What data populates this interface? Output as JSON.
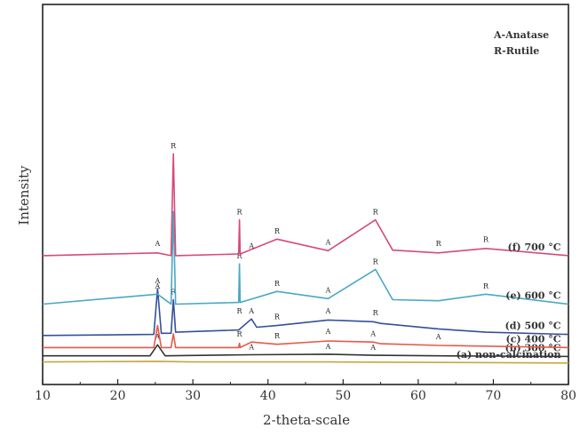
{
  "chart_data": {
    "type": "line",
    "xlabel": "2-theta-scale",
    "ylabel": "Intensity",
    "xlim": [
      10,
      80
    ],
    "xticks": [
      10,
      20,
      30,
      40,
      50,
      60,
      70,
      80
    ],
    "legend": [
      "A-Anatase",
      "R-Rutile"
    ],
    "series": [
      {
        "name": "(a) non-calcination",
        "color": "#c8a63a",
        "offset": 0,
        "points": [
          [
            10,
            12
          ],
          [
            25.3,
            13
          ],
          [
            30,
            12
          ],
          [
            48,
            12
          ],
          [
            80,
            10
          ]
        ],
        "markers": []
      },
      {
        "name": "(b) 300 °C",
        "color": "#333333",
        "offset": 8,
        "points": [
          [
            10,
            15
          ],
          [
            24.3,
            15
          ],
          [
            25.3,
            35
          ],
          [
            26.3,
            15
          ],
          [
            37.8,
            17
          ],
          [
            48,
            18
          ],
          [
            54,
            16
          ],
          [
            62.7,
            15
          ],
          [
            80,
            14
          ]
        ],
        "markers": [
          {
            "label": "A",
            "x": 25.3,
            "y": 40
          },
          {
            "label": "A",
            "x": 37.8,
            "y": 22
          },
          {
            "label": "A",
            "x": 48.0,
            "y": 23
          },
          {
            "label": "A",
            "x": 54.0,
            "y": 21
          }
        ]
      },
      {
        "name": "(c) 400 °C",
        "color": "#e45a4a",
        "offset": 18,
        "points": [
          [
            10,
            20
          ],
          [
            24.8,
            20
          ],
          [
            25.3,
            60
          ],
          [
            25.8,
            20
          ],
          [
            27.1,
            20
          ],
          [
            27.4,
            45
          ],
          [
            27.7,
            20
          ],
          [
            36.1,
            20
          ],
          [
            36.2,
            28
          ],
          [
            36.3,
            20
          ],
          [
            37.8,
            30
          ],
          [
            41.2,
            26
          ],
          [
            48,
            32
          ],
          [
            54,
            30
          ],
          [
            55,
            27
          ],
          [
            62.7,
            24
          ],
          [
            80,
            20
          ]
        ],
        "markers": [
          {
            "label": "R",
            "x": 36.2,
            "y": 35
          },
          {
            "label": "R",
            "x": 41.2,
            "y": 32
          },
          {
            "label": "A",
            "x": 48.0,
            "y": 40
          },
          {
            "label": "A",
            "x": 54.0,
            "y": 36
          },
          {
            "label": "A",
            "x": 62.7,
            "y": 30
          }
        ]
      },
      {
        "name": "(d) 500 °C",
        "color": "#34509a",
        "offset": 40,
        "points": [
          [
            10,
            20
          ],
          [
            24.8,
            22
          ],
          [
            25.3,
            105
          ],
          [
            25.8,
            24
          ],
          [
            27.1,
            24
          ],
          [
            27.4,
            85
          ],
          [
            27.7,
            26
          ],
          [
            36.1,
            30
          ],
          [
            37.8,
            50
          ],
          [
            38.5,
            35
          ],
          [
            41.2,
            38
          ],
          [
            48,
            48
          ],
          [
            54,
            45
          ],
          [
            55,
            42
          ],
          [
            62.7,
            32
          ],
          [
            69,
            26
          ],
          [
            80,
            22
          ]
        ],
        "markers": [
          {
            "label": "A",
            "x": 25.3,
            "y": 110
          },
          {
            "label": "R",
            "x": 27.4,
            "y": 90
          },
          {
            "label": "R",
            "x": 36.2,
            "y": 55
          },
          {
            "label": "A",
            "x": 37.8,
            "y": 55
          },
          {
            "label": "R",
            "x": 41.2,
            "y": 45
          },
          {
            "label": "A",
            "x": 48.0,
            "y": 55
          },
          {
            "label": "R",
            "x": 54.3,
            "y": 52
          }
        ]
      },
      {
        "name": "(e) 600 °C",
        "color": "#4aa8c4",
        "offset": 95,
        "points": [
          [
            10,
            22
          ],
          [
            25.3,
            40
          ],
          [
            27.1,
            22
          ],
          [
            27.4,
            190
          ],
          [
            27.7,
            22
          ],
          [
            36.1,
            25
          ],
          [
            36.2,
            95
          ],
          [
            36.3,
            25
          ],
          [
            41.2,
            45
          ],
          [
            48,
            32
          ],
          [
            54.3,
            85
          ],
          [
            56.6,
            30
          ],
          [
            62.7,
            28
          ],
          [
            69,
            40
          ],
          [
            80,
            22
          ]
        ],
        "markers": [
          {
            "label": "A",
            "x": 25.3,
            "y": 45
          },
          {
            "label": "R",
            "x": 36.2,
            "y": 100
          },
          {
            "label": "R",
            "x": 41.2,
            "y": 50
          },
          {
            "label": "A",
            "x": 48.0,
            "y": 38
          },
          {
            "label": "R",
            "x": 54.3,
            "y": 90
          },
          {
            "label": "R",
            "x": 69.0,
            "y": 45
          }
        ]
      },
      {
        "name": "(f) 700 °C",
        "color": "#d64a7a",
        "offset": 190,
        "points": [
          [
            10,
            15
          ],
          [
            25.3,
            20
          ],
          [
            27.1,
            15
          ],
          [
            27.4,
            200
          ],
          [
            27.7,
            15
          ],
          [
            36.1,
            18
          ],
          [
            36.2,
            80
          ],
          [
            36.3,
            18
          ],
          [
            41.2,
            45
          ],
          [
            48,
            24
          ],
          [
            54.3,
            80
          ],
          [
            56.6,
            25
          ],
          [
            62.7,
            20
          ],
          [
            69,
            28
          ],
          [
            80,
            15
          ]
        ],
        "markers": [
          {
            "label": "A",
            "x": 25.3,
            "y": 28
          },
          {
            "label": "R",
            "x": 27.4,
            "y": 205
          },
          {
            "label": "R",
            "x": 36.2,
            "y": 85
          },
          {
            "label": "A",
            "x": 37.8,
            "y": 24
          },
          {
            "label": "R",
            "x": 41.2,
            "y": 50
          },
          {
            "label": "A",
            "x": 48.0,
            "y": 30
          },
          {
            "label": "R",
            "x": 54.3,
            "y": 85
          },
          {
            "label": "R",
            "x": 62.7,
            "y": 28
          },
          {
            "label": "R",
            "x": 69.0,
            "y": 35
          }
        ]
      }
    ]
  }
}
